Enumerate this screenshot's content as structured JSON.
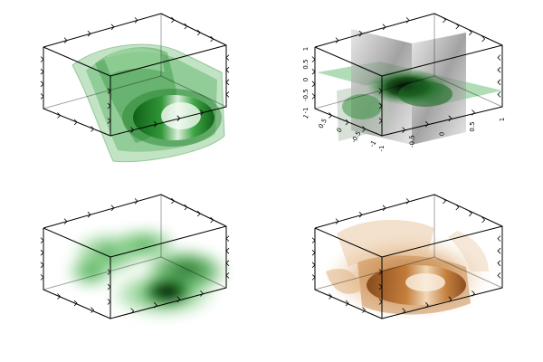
{
  "chart_data": [
    {
      "type": "volume-isosurface",
      "panel": "top-left",
      "title": "",
      "rendering": "nested translucent isosurfaces",
      "colormap": "green",
      "color": "#1f9a2c",
      "axes_tick_labels": false,
      "box": true
    },
    {
      "type": "volume-slices",
      "panel": "top-right",
      "title": "",
      "rendering": "three orthogonal translucent slices",
      "colormap": "green-gray",
      "color": "#2e8a38",
      "axes_tick_labels": true,
      "ticks": {
        "x": [
          "-1",
          "-0.5",
          "0",
          "0.5",
          "1"
        ],
        "y": [
          "1",
          "0.5",
          "0",
          "-0.5",
          "-1"
        ],
        "z": [
          "-1",
          "-0.5",
          "0",
          "0.5",
          "1"
        ]
      },
      "ranges": {
        "x": [
          -1,
          1
        ],
        "y": [
          -1,
          1
        ],
        "z": [
          -1,
          1
        ]
      },
      "box": true
    },
    {
      "type": "volume-cloud",
      "panel": "bottom-left",
      "title": "",
      "rendering": "smooth density cloud",
      "colormap": "green",
      "color": "#0a6a14",
      "axes_tick_labels": false,
      "box": true
    },
    {
      "type": "volume-isosurface",
      "panel": "bottom-right",
      "title": "",
      "rendering": "nested translucent isosurfaces",
      "colormap": "copper",
      "color": "#b86a28",
      "axes_tick_labels": false,
      "box": true
    }
  ]
}
